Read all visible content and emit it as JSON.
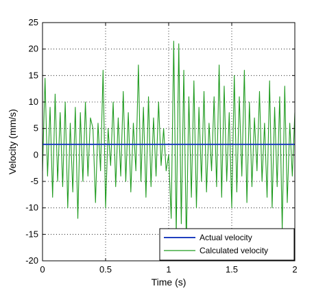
{
  "chart_data": {
    "type": "line",
    "title": "",
    "xlabel": "Time (s)",
    "ylabel": "Velocity (mm/s)",
    "xlim": [
      0,
      2
    ],
    "ylim": [
      -20,
      25
    ],
    "grid": true,
    "grid_style": "dotted",
    "legend_position": "bottom-right",
    "x_ticks": [
      0,
      0.5,
      1,
      1.5,
      2
    ],
    "x_tick_labels": [
      "0",
      "0.5",
      "1",
      "1.5",
      "2"
    ],
    "y_ticks": [
      -20,
      -15,
      -10,
      -5,
      0,
      5,
      10,
      15,
      20,
      25
    ],
    "y_tick_labels": [
      "-20",
      "-15",
      "-10",
      "-5",
      "0",
      "5",
      "10",
      "15",
      "20",
      "25"
    ],
    "series": [
      {
        "name": "Actual velocity",
        "color": "#1f3fbf",
        "x": [
          0,
          2
        ],
        "y": [
          2,
          2
        ]
      },
      {
        "name": "Calculated velocity",
        "color": "#1e9a1e",
        "x": [
          0,
          0.02,
          0.04,
          0.06,
          0.08,
          0.1,
          0.12,
          0.14,
          0.16,
          0.18,
          0.2,
          0.22,
          0.24,
          0.26,
          0.28,
          0.3,
          0.32,
          0.34,
          0.36,
          0.38,
          0.4,
          0.42,
          0.44,
          0.46,
          0.48,
          0.5,
          0.52,
          0.54,
          0.56,
          0.58,
          0.6,
          0.62,
          0.64,
          0.66,
          0.68,
          0.7,
          0.72,
          0.74,
          0.76,
          0.78,
          0.8,
          0.82,
          0.84,
          0.86,
          0.88,
          0.9,
          0.92,
          0.94,
          0.96,
          0.98,
          1.0,
          1.02,
          1.04,
          1.06,
          1.08,
          1.1,
          1.12,
          1.14,
          1.16,
          1.18,
          1.2,
          1.22,
          1.24,
          1.26,
          1.28,
          1.3,
          1.32,
          1.34,
          1.36,
          1.38,
          1.4,
          1.42,
          1.44,
          1.46,
          1.48,
          1.5,
          1.52,
          1.54,
          1.56,
          1.58,
          1.6,
          1.62,
          1.64,
          1.66,
          1.68,
          1.7,
          1.72,
          1.74,
          1.76,
          1.78,
          1.8,
          1.82,
          1.84,
          1.86,
          1.88,
          1.9,
          1.92,
          1.94,
          1.96,
          1.98,
          2.0
        ],
        "y": [
          -3,
          14.5,
          -4,
          9,
          -8,
          11.5,
          -5,
          8,
          -6,
          10,
          -10,
          6,
          -7,
          9,
          -12,
          8,
          -5,
          10,
          -4,
          7,
          5,
          -9,
          6,
          -3,
          16,
          -10,
          5,
          -2,
          10,
          -6,
          7,
          -4,
          12,
          -5,
          8,
          -7,
          6,
          -3,
          17,
          -5,
          9,
          -8,
          11,
          -6,
          7,
          -4,
          10,
          -2,
          5,
          -3,
          0,
          -12,
          21.5,
          -15,
          21,
          -13,
          16,
          -17,
          11,
          -8,
          14,
          -10,
          9,
          -5,
          12,
          -7,
          6,
          -3,
          11,
          -6,
          17,
          -8,
          13,
          -5,
          8,
          -10,
          15,
          -7,
          11,
          -4,
          16,
          -9,
          10,
          -6,
          7,
          -3,
          12,
          -5,
          6,
          -8,
          14,
          -10,
          9,
          -6,
          11,
          -14,
          13,
          -9,
          6,
          -4,
          8
        ]
      }
    ]
  }
}
